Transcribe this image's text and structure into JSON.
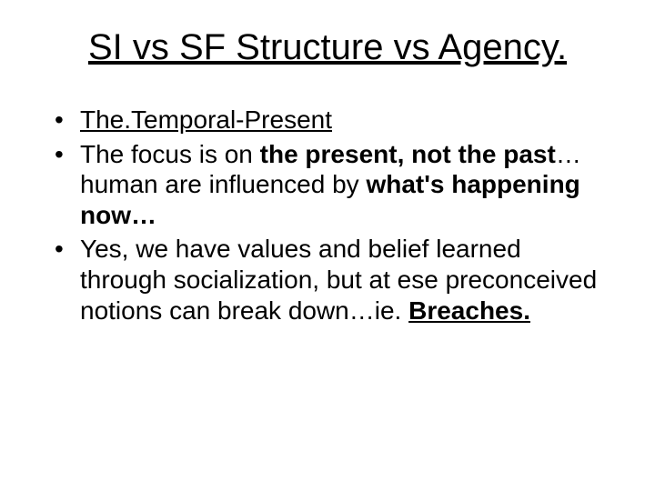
{
  "slide": {
    "title": "SI vs SF Structure vs Agency.",
    "bullets": [
      {
        "segments": [
          {
            "text": "The.Temporal-Present",
            "underline": true,
            "bold": false
          }
        ]
      },
      {
        "segments": [
          {
            "text": "The focus is on ",
            "underline": false,
            "bold": false
          },
          {
            "text": "the present, not the past",
            "underline": false,
            "bold": true
          },
          {
            "text": "…human are influenced by ",
            "underline": false,
            "bold": false
          },
          {
            "text": "what's happening now…",
            "underline": false,
            "bold": true
          }
        ]
      },
      {
        "segments": [
          {
            "text": "Yes, we have values and belief learned through socialization, but at ese preconceived notions can break down…ie. ",
            "underline": false,
            "bold": false
          },
          {
            "text": "Breaches.",
            "underline": true,
            "bold": true
          }
        ]
      }
    ]
  },
  "style": {
    "background_color": "#ffffff",
    "text_color": "#000000",
    "title_fontsize": 40,
    "body_fontsize": 28,
    "font_family": "Arial"
  }
}
